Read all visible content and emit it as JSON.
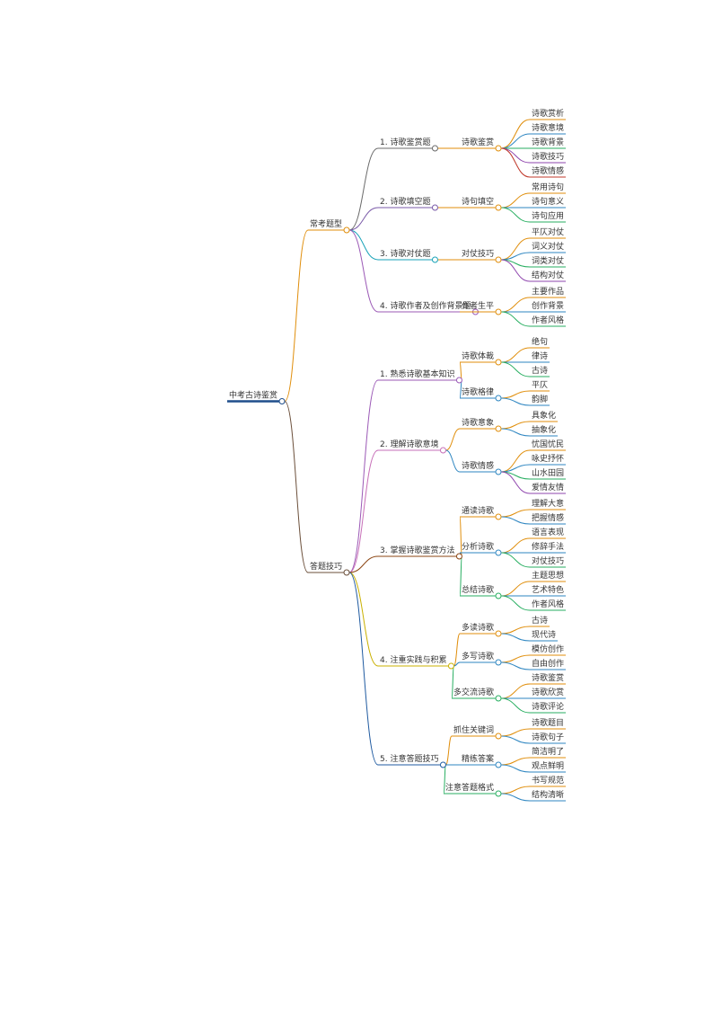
{
  "mindmap": {
    "label": "中考古诗鉴赏",
    "children": [
      {
        "label": "常考题型",
        "children": [
          {
            "label": "1. 诗歌鉴赏题",
            "children": [
              {
                "label": "诗歌鉴赏",
                "children": [
                  {
                    "label": "诗歌赏析"
                  },
                  {
                    "label": "诗歌意境"
                  },
                  {
                    "label": "诗歌背景"
                  },
                  {
                    "label": "诗歌技巧"
                  },
                  {
                    "label": "诗歌情感"
                  }
                ]
              }
            ]
          },
          {
            "label": "2. 诗歌填空题",
            "children": [
              {
                "label": "诗句填空",
                "children": [
                  {
                    "label": "常用诗句"
                  },
                  {
                    "label": "诗句意义"
                  },
                  {
                    "label": "诗句应用"
                  }
                ]
              }
            ]
          },
          {
            "label": "3. 诗歌对仗题",
            "children": [
              {
                "label": "对仗技巧",
                "children": [
                  {
                    "label": "平仄对仗"
                  },
                  {
                    "label": "词义对仗"
                  },
                  {
                    "label": "词类对仗"
                  },
                  {
                    "label": "结构对仗"
                  }
                ]
              }
            ]
          },
          {
            "label": "4. 诗歌作者及创作背景题",
            "children": [
              {
                "label": "作者生平",
                "children": [
                  {
                    "label": "主要作品"
                  },
                  {
                    "label": "创作背景"
                  },
                  {
                    "label": "作者风格"
                  }
                ]
              }
            ]
          }
        ]
      },
      {
        "label": "答题技巧",
        "children": [
          {
            "label": "1. 熟悉诗歌基本知识",
            "children": [
              {
                "label": "诗歌体裁",
                "children": [
                  {
                    "label": "绝句"
                  },
                  {
                    "label": "律诗"
                  },
                  {
                    "label": "古诗"
                  }
                ]
              },
              {
                "label": "诗歌格律",
                "children": [
                  {
                    "label": "平仄"
                  },
                  {
                    "label": "韵脚"
                  }
                ]
              }
            ]
          },
          {
            "label": "2. 理解诗歌意境",
            "children": [
              {
                "label": "诗歌意象",
                "children": [
                  {
                    "label": "具象化"
                  },
                  {
                    "label": "抽象化"
                  }
                ]
              },
              {
                "label": "诗歌情感",
                "children": [
                  {
                    "label": "忧国忧民"
                  },
                  {
                    "label": "咏史抒怀"
                  },
                  {
                    "label": "山水田园"
                  },
                  {
                    "label": "爱情友情"
                  }
                ]
              }
            ]
          },
          {
            "label": "3. 掌握诗歌鉴赏方法",
            "children": [
              {
                "label": "通读诗歌",
                "children": [
                  {
                    "label": "理解大意"
                  },
                  {
                    "label": "把握情感"
                  }
                ]
              },
              {
                "label": "分析诗歌",
                "children": [
                  {
                    "label": "语言表现"
                  },
                  {
                    "label": "修辞手法"
                  },
                  {
                    "label": "对仗技巧"
                  }
                ]
              },
              {
                "label": "总结诗歌",
                "children": [
                  {
                    "label": "主题思想"
                  },
                  {
                    "label": "艺术特色"
                  },
                  {
                    "label": "作者风格"
                  }
                ]
              }
            ]
          },
          {
            "label": "4. 注重实践与积累",
            "children": [
              {
                "label": "多读诗歌",
                "children": [
                  {
                    "label": "古诗"
                  },
                  {
                    "label": "现代诗"
                  }
                ]
              },
              {
                "label": "多写诗歌",
                "children": [
                  {
                    "label": "模仿创作"
                  },
                  {
                    "label": "自由创作"
                  }
                ]
              },
              {
                "label": "多交流诗歌",
                "children": [
                  {
                    "label": "诗歌鉴赏"
                  },
                  {
                    "label": "诗歌欣赏"
                  },
                  {
                    "label": "诗歌评论"
                  }
                ]
              }
            ]
          },
          {
            "label": "5. 注意答题技巧",
            "children": [
              {
                "label": "抓住关键词",
                "children": [
                  {
                    "label": "诗歌题目"
                  },
                  {
                    "label": "诗歌句子"
                  }
                ]
              },
              {
                "label": "精练答案",
                "children": [
                  {
                    "label": "简洁明了"
                  },
                  {
                    "label": "观点鲜明"
                  }
                ]
              },
              {
                "label": "注意答题格式",
                "children": [
                  {
                    "label": "书写规范"
                  },
                  {
                    "label": "结构清晰"
                  }
                ]
              }
            ]
          }
        ]
      }
    ]
  }
}
